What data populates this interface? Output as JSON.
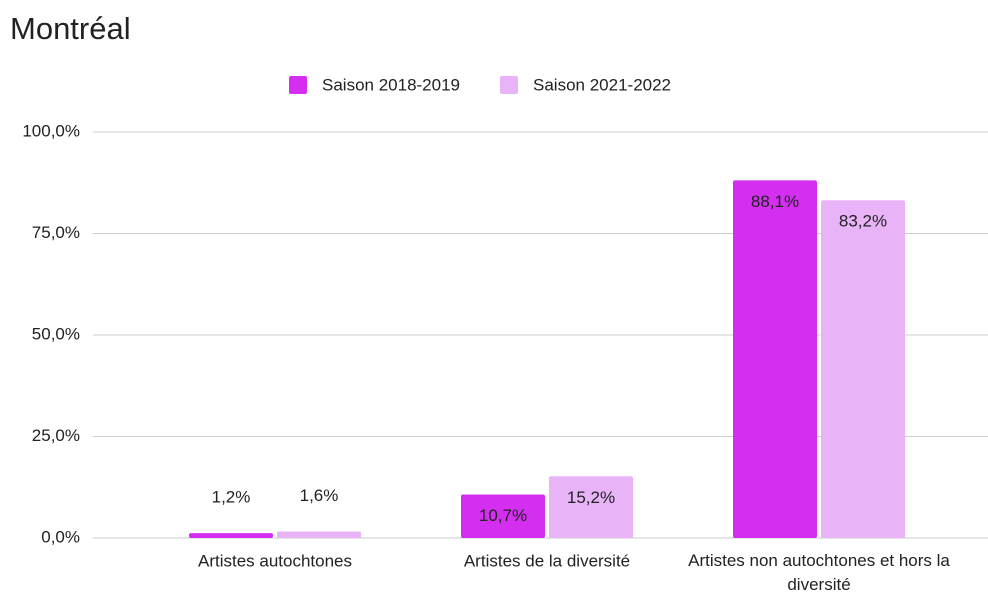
{
  "chart_data": {
    "type": "bar",
    "title": "Montréal",
    "categories": [
      "Artistes autochtones",
      "Artistes de la diversité",
      "Artistes non autochtones et hors la diversité"
    ],
    "series": [
      {
        "name": "Saison 2018-2019",
        "color": "#d42ff0",
        "values": [
          1.2,
          10.7,
          88.1
        ],
        "value_labels": [
          "1,2%",
          "10,7%",
          "88,1%"
        ]
      },
      {
        "name": "Saison 2021-2022",
        "color": "#e9b3f7",
        "values": [
          1.6,
          15.2,
          83.2
        ],
        "value_labels": [
          "1,6%",
          "15,2%",
          "83,2%"
        ]
      }
    ],
    "ylim": [
      0,
      100
    ],
    "yticks": [
      {
        "value": 0,
        "label": "0,0%"
      },
      {
        "value": 25,
        "label": "25,0%"
      },
      {
        "value": 50,
        "label": "50,0%"
      },
      {
        "value": 75,
        "label": "75,0%"
      },
      {
        "value": 100,
        "label": "100,0%"
      }
    ],
    "grid": true,
    "legend": "top"
  }
}
